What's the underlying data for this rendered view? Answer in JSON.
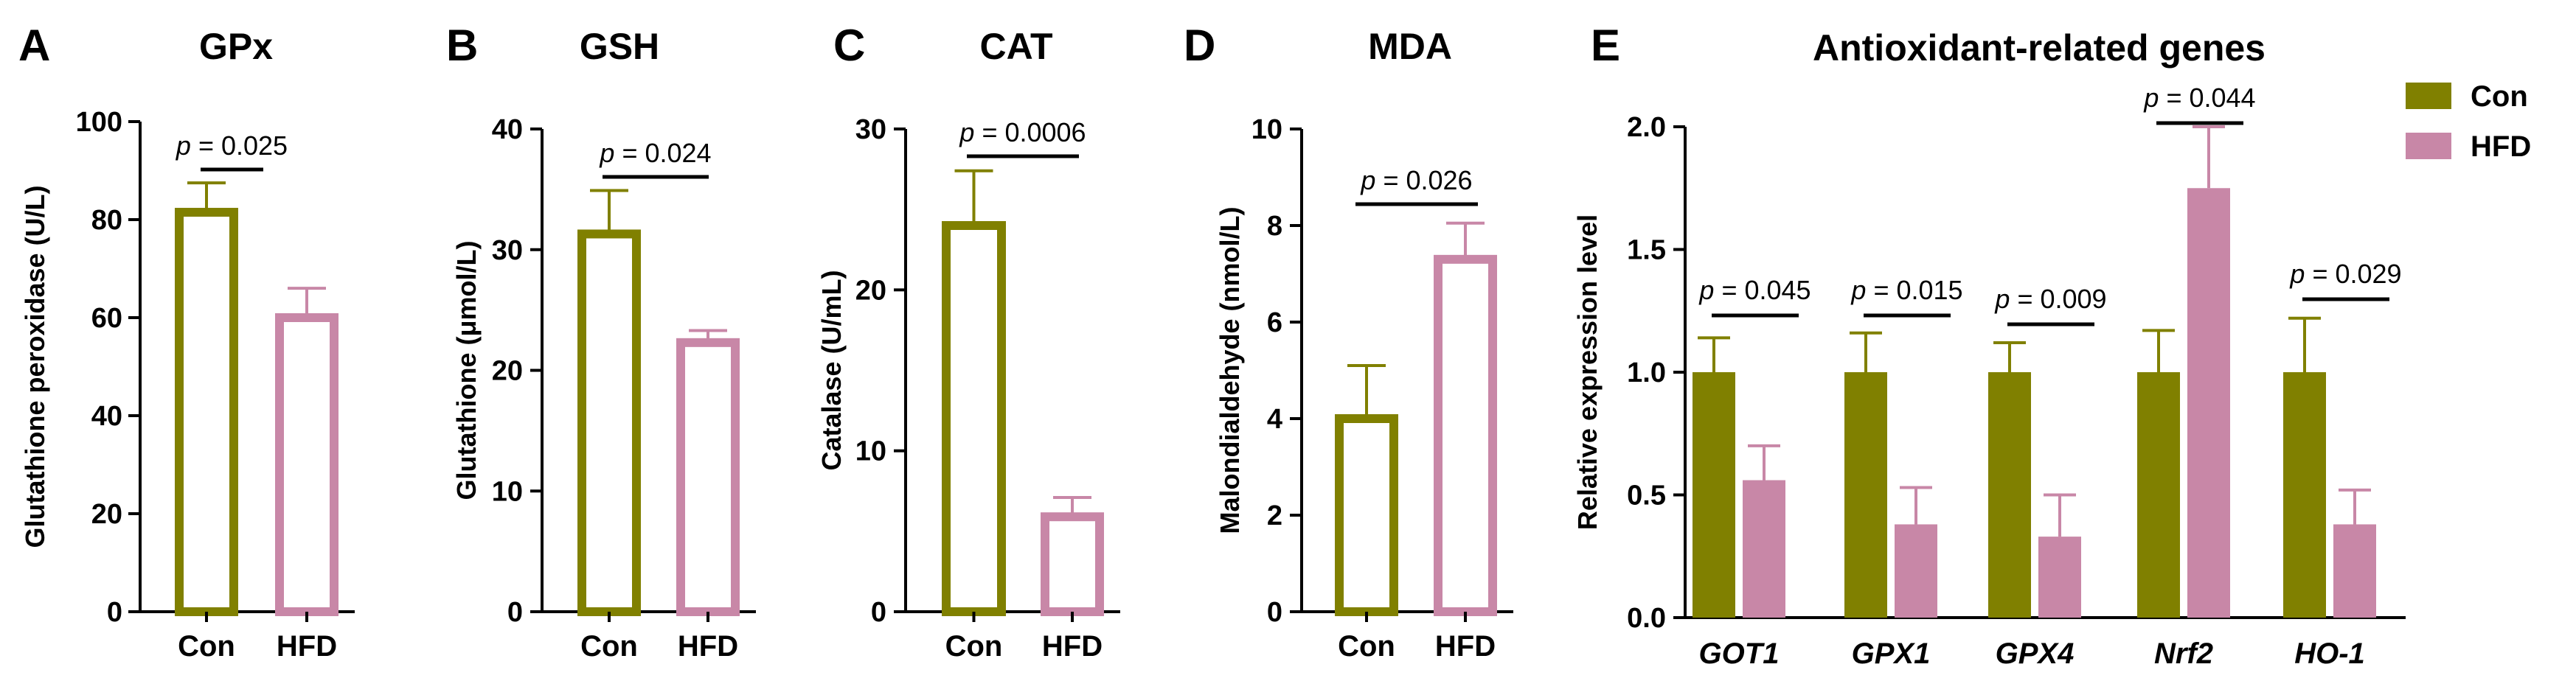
{
  "colors": {
    "con": "#808000",
    "hfd": "#c887a7"
  },
  "legend": [
    {
      "key": "con",
      "label": "Con"
    },
    {
      "key": "hfd",
      "label": "HFD"
    }
  ],
  "chart_data": [
    {
      "letter": "A",
      "type": "bar",
      "style": "open",
      "title": "GPx",
      "ylabel": "Glutathione peroxidase (U/L)",
      "ylim": [
        0,
        100
      ],
      "yticks": [
        0,
        20,
        40,
        60,
        80,
        100
      ],
      "categories": [
        "Con",
        "HFD"
      ],
      "values": [
        81.5,
        60
      ],
      "errors": [
        6,
        6
      ],
      "annotation": {
        "text": "= 0.025",
        "p": "p"
      }
    },
    {
      "letter": "B",
      "type": "bar",
      "style": "open",
      "title": "GSH",
      "ylabel": "Glutathione (μmol/L)",
      "ylim": [
        0,
        40
      ],
      "yticks": [
        0,
        10,
        20,
        30,
        40
      ],
      "categories": [
        "Con",
        "HFD"
      ],
      "values": [
        31.3,
        22.3
      ],
      "errors": [
        3.6,
        1
      ],
      "annotation": {
        "text": "= 0.024",
        "p": "p"
      }
    },
    {
      "letter": "C",
      "type": "bar",
      "style": "open",
      "title": "CAT",
      "ylabel": "Catalase (U/mL)",
      "ylim": [
        0,
        30
      ],
      "yticks": [
        0,
        10,
        20,
        30
      ],
      "categories": [
        "Con",
        "HFD"
      ],
      "values": [
        24,
        5.9
      ],
      "errors": [
        3.4,
        1.2
      ],
      "annotation": {
        "text": "= 0.0006",
        "p": "p"
      }
    },
    {
      "letter": "D",
      "type": "bar",
      "style": "open",
      "title": "MDA",
      "ylabel": "Malondialdehyde (nmol/L)",
      "ylim": [
        0,
        10
      ],
      "yticks": [
        0,
        2,
        4,
        6,
        8,
        10
      ],
      "categories": [
        "Con",
        "HFD"
      ],
      "values": [
        4,
        7.3
      ],
      "errors": [
        1.1,
        0.75
      ],
      "annotation": {
        "text": "= 0.026",
        "p": "p"
      }
    },
    {
      "letter": "E",
      "type": "bar",
      "style": "filled",
      "title": "Antioxidant-related genes",
      "ylabel": "Relative expression level",
      "ylim": [
        0,
        2.0
      ],
      "yticks": [
        "0.0",
        "0.5",
        "1.0",
        "1.5",
        "2.0"
      ],
      "categories": [
        "GOT1",
        "GPX1",
        "GPX4",
        "Nrf2",
        "HO-1"
      ],
      "series": [
        {
          "name": "Con",
          "values": [
            1.0,
            1.0,
            1.0,
            1.0,
            1.0
          ],
          "errors": [
            0.14,
            0.16,
            0.12,
            0.17,
            0.22
          ]
        },
        {
          "name": "HFD",
          "values": [
            0.56,
            0.38,
            0.33,
            1.75,
            0.38
          ],
          "errors": [
            0.14,
            0.15,
            0.17,
            0.25,
            0.14
          ]
        }
      ],
      "annotations": [
        {
          "p": "p",
          "text": "= 0.045"
        },
        {
          "p": "p",
          "text": "= 0.015"
        },
        {
          "p": "p",
          "text": "= 0.009"
        },
        {
          "p": "p",
          "text": "= 0.044"
        },
        {
          "p": "p",
          "text": "= 0.029"
        }
      ]
    }
  ]
}
